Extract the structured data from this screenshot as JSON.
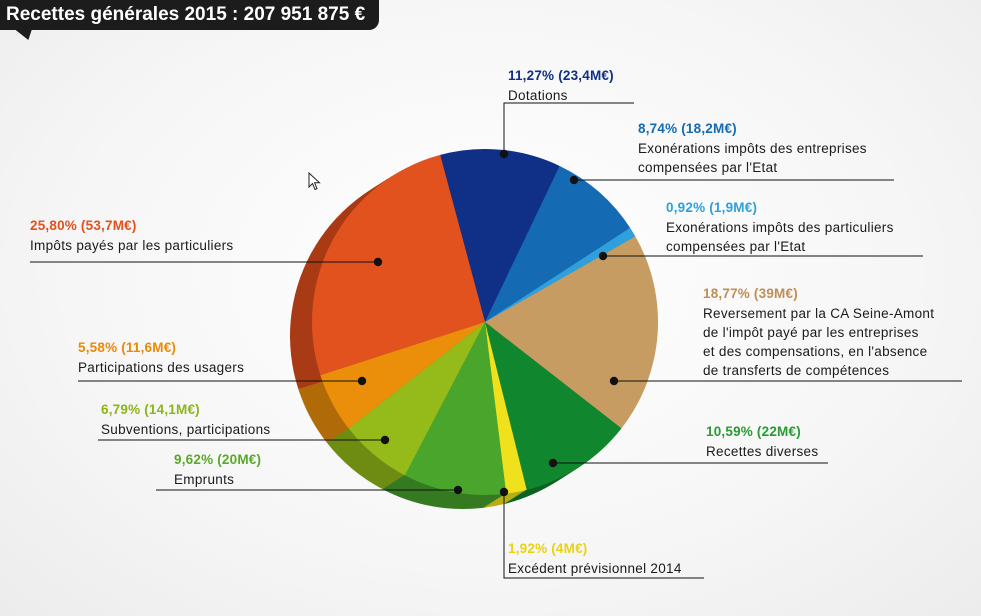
{
  "header": {
    "title": "Recettes générales 2015 : 207 951 875 €"
  },
  "chart_data": {
    "type": "pie",
    "title": "Recettes générales 2015 : 207 951 875 €",
    "slices": [
      {
        "pct_text": "11,27% (23,4M€)",
        "value": 11.27,
        "amount_meur": 23.4,
        "label": [
          "Dotations"
        ],
        "color": "#102f86",
        "side": "#0b2262"
      },
      {
        "pct_text": "8,74% (18,2M€)",
        "value": 8.74,
        "amount_meur": 18.2,
        "label": [
          "Exonérations impôts des entreprises",
          "compensées par l'Etat"
        ],
        "color": "#146bb3",
        "side": "#0e4f86"
      },
      {
        "pct_text": "0,92% (1,9M€)",
        "value": 0.92,
        "amount_meur": 1.9,
        "label": [
          "Exonérations impôts des particuliers",
          "compensées par l'Etat"
        ],
        "color": "#2fa0dc",
        "side": "#2278a6"
      },
      {
        "pct_text": "18,77% (39M€)",
        "value": 18.77,
        "amount_meur": 39,
        "label": [
          "Reversement par la CA Seine-Amont",
          "de l'impôt payé par les entreprises",
          "et des compensations, en l'absence",
          "de transferts de compétences"
        ],
        "color": "#c69c63",
        "side": "#967348"
      },
      {
        "pct_text": "10,59% (22M€)",
        "value": 10.59,
        "amount_meur": 22,
        "label": [
          "Recettes diverses"
        ],
        "color": "#10872e",
        "side": "#0a6421"
      },
      {
        "pct_text": "1,92% (4M€)",
        "value": 1.92,
        "amount_meur": 4,
        "label": [
          "Excédent prévisionnel 2014"
        ],
        "color": "#f0e11d",
        "side": "#b9ad16"
      },
      {
        "pct_text": "9,62% (20M€)",
        "value": 9.62,
        "amount_meur": 20,
        "label": [
          "Emprunts"
        ],
        "color": "#49a52c",
        "side": "#357a20"
      },
      {
        "pct_text": "6,79% (14,1M€)",
        "value": 6.79,
        "amount_meur": 14.1,
        "label": [
          "Subventions, participations"
        ],
        "color": "#94bb19",
        "side": "#6f8c12"
      },
      {
        "pct_text": "5,58% (11,6M€)",
        "value": 5.58,
        "amount_meur": 11.6,
        "label": [
          "Participations des usagers"
        ],
        "color": "#eb8e0a",
        "side": "#b06a07"
      },
      {
        "pct_text": "25,80% (53,7M€)",
        "value": 25.8,
        "amount_meur": 53.7,
        "label": [
          "Impôts payés par les particuliers"
        ],
        "color": "#e1521f",
        "side": "#a83a15"
      }
    ],
    "pct_colors": [
      "#102f86",
      "#146bb3",
      "#2fa0dc",
      "#c08e55",
      "#2a9a34",
      "#e8d40c",
      "#5aa82b",
      "#8db51a",
      "#e98a08",
      "#e1521f"
    ]
  }
}
